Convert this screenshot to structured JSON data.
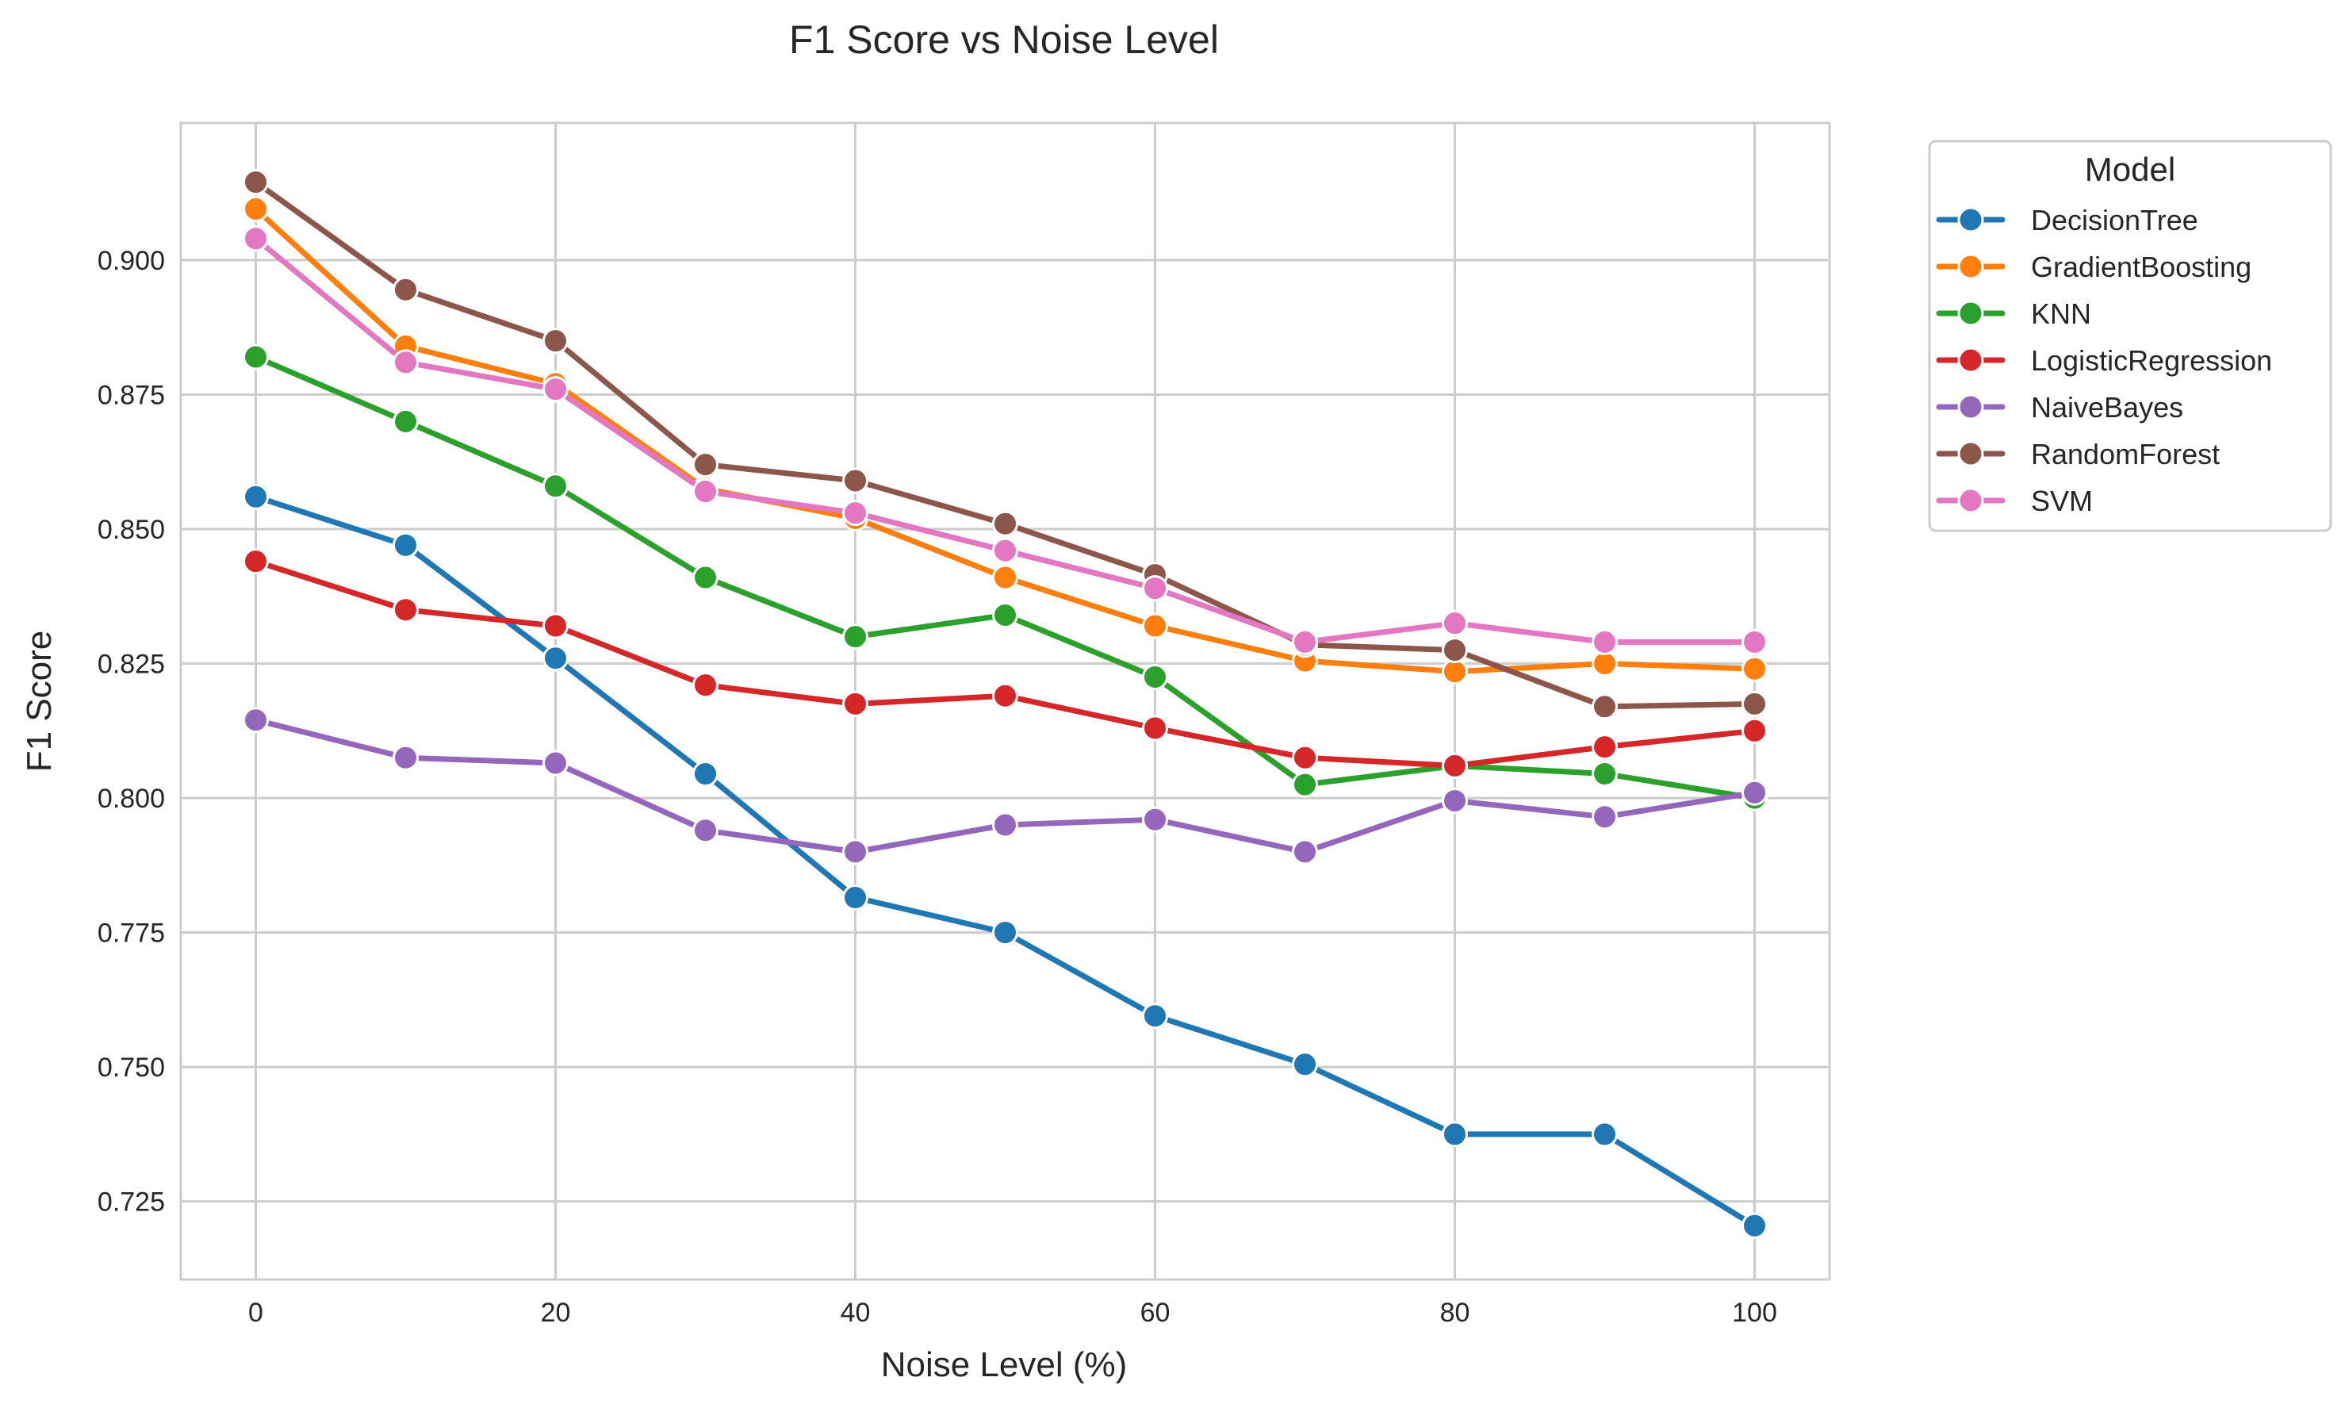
{
  "chart_data": {
    "type": "line",
    "title": "F1 Score vs Noise Level",
    "xlabel": "Noise Level (%)",
    "ylabel": "F1 Score",
    "x": [
      0,
      10,
      20,
      30,
      40,
      50,
      60,
      70,
      80,
      90,
      100
    ],
    "xlim": [
      -5,
      105
    ],
    "ylim": [
      0.7105,
      0.9255
    ],
    "xticks": [
      "0",
      "20",
      "40",
      "60",
      "80",
      "100"
    ],
    "xtick_values": [
      0,
      20,
      40,
      60,
      80,
      100
    ],
    "yticks": [
      "0.725",
      "0.750",
      "0.775",
      "0.800",
      "0.825",
      "0.850",
      "0.875",
      "0.900"
    ],
    "ytick_values": [
      0.725,
      0.75,
      0.775,
      0.8,
      0.825,
      0.85,
      0.875,
      0.9
    ],
    "grid": true,
    "legend": {
      "title": "Model",
      "placement": "outside-upper-right"
    },
    "series": [
      {
        "name": "DecisionTree",
        "color": "#1f77b4",
        "values": [
          0.856,
          0.847,
          0.826,
          0.8045,
          0.7815,
          0.775,
          0.7595,
          0.7505,
          0.7375,
          0.7375,
          0.7205
        ]
      },
      {
        "name": "GradientBoosting",
        "color": "#ff7f0e",
        "values": [
          0.9095,
          0.884,
          0.877,
          0.8575,
          0.852,
          0.841,
          0.832,
          0.8255,
          0.8235,
          0.825,
          0.824
        ]
      },
      {
        "name": "KNN",
        "color": "#2ca02c",
        "values": [
          0.882,
          0.87,
          0.858,
          0.841,
          0.83,
          0.834,
          0.8225,
          0.8025,
          0.806,
          0.8045,
          0.8
        ]
      },
      {
        "name": "LogisticRegression",
        "color": "#d62728",
        "values": [
          0.844,
          0.835,
          0.832,
          0.821,
          0.8175,
          0.819,
          0.813,
          0.8075,
          0.806,
          0.8095,
          0.8125
        ]
      },
      {
        "name": "NaiveBayes",
        "color": "#9467bd",
        "values": [
          0.8145,
          0.8075,
          0.8065,
          0.794,
          0.79,
          0.795,
          0.796,
          0.79,
          0.7995,
          0.7965,
          0.801
        ]
      },
      {
        "name": "RandomForest",
        "color": "#8c564b",
        "values": [
          0.9145,
          0.8945,
          0.885,
          0.862,
          0.859,
          0.851,
          0.8415,
          0.8285,
          0.8275,
          0.817,
          0.8175
        ]
      },
      {
        "name": "SVM",
        "color": "#e377c2",
        "values": [
          0.904,
          0.881,
          0.876,
          0.857,
          0.853,
          0.846,
          0.839,
          0.829,
          0.8325,
          0.829,
          0.829
        ]
      }
    ]
  }
}
